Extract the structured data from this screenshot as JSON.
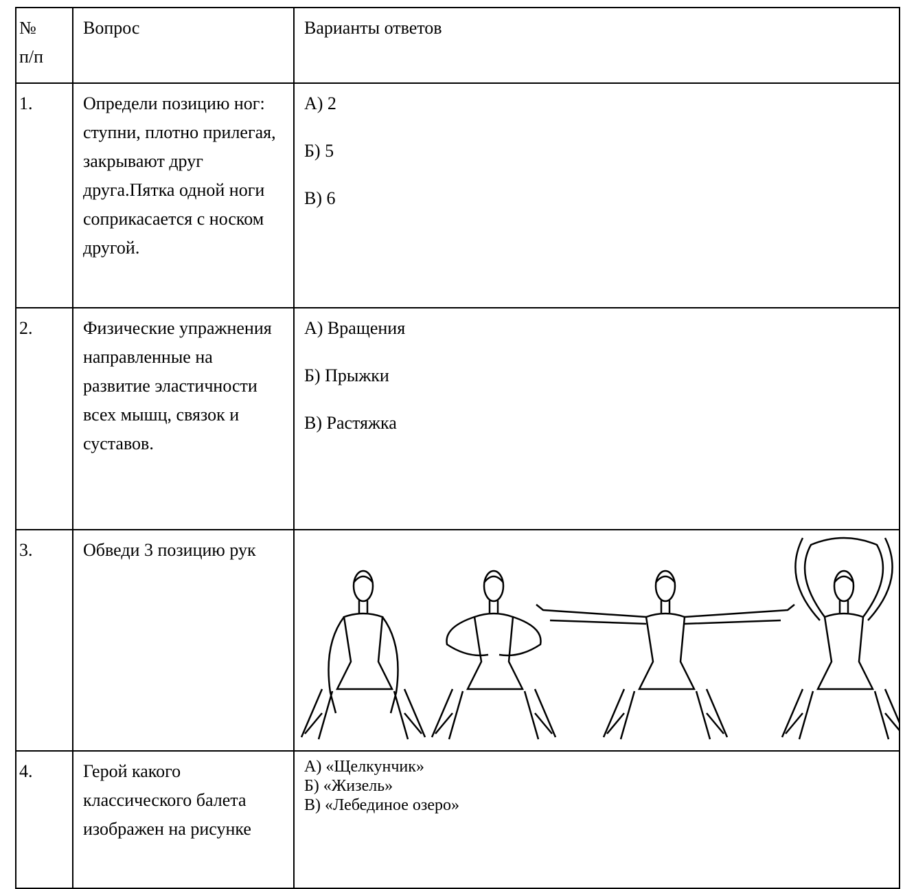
{
  "table": {
    "header": [
      "№\nп/п",
      "Вопрос",
      "Варианты ответов"
    ],
    "rows": [
      {
        "number": "1.",
        "question": "Определи позицию ног: ступни, плотно прилегая, закрывают друг друга.Пятка одной ноги соприкасается с носком другой.",
        "answers": [
          "А) 2",
          "Б) 5",
          "В) 6"
        ]
      },
      {
        "number": "2.",
        "question": "Физические упражнения направленные на развитие эластичности всех мышц, связок и суставов.",
        "answers": [
          "А) Вращения",
          "Б) Прыжки",
          "В) Растяжка"
        ]
      },
      {
        "number": "3.",
        "question": "Обведи 3 позицию рук"
      },
      {
        "number": "4.",
        "question": "Герой какого классического балета изображен на рисунке",
        "answers": [
          "А) «Щелкунчик»",
          "Б) «Жизель»",
          "В) «Лебединое озеро»"
        ]
      }
    ]
  }
}
